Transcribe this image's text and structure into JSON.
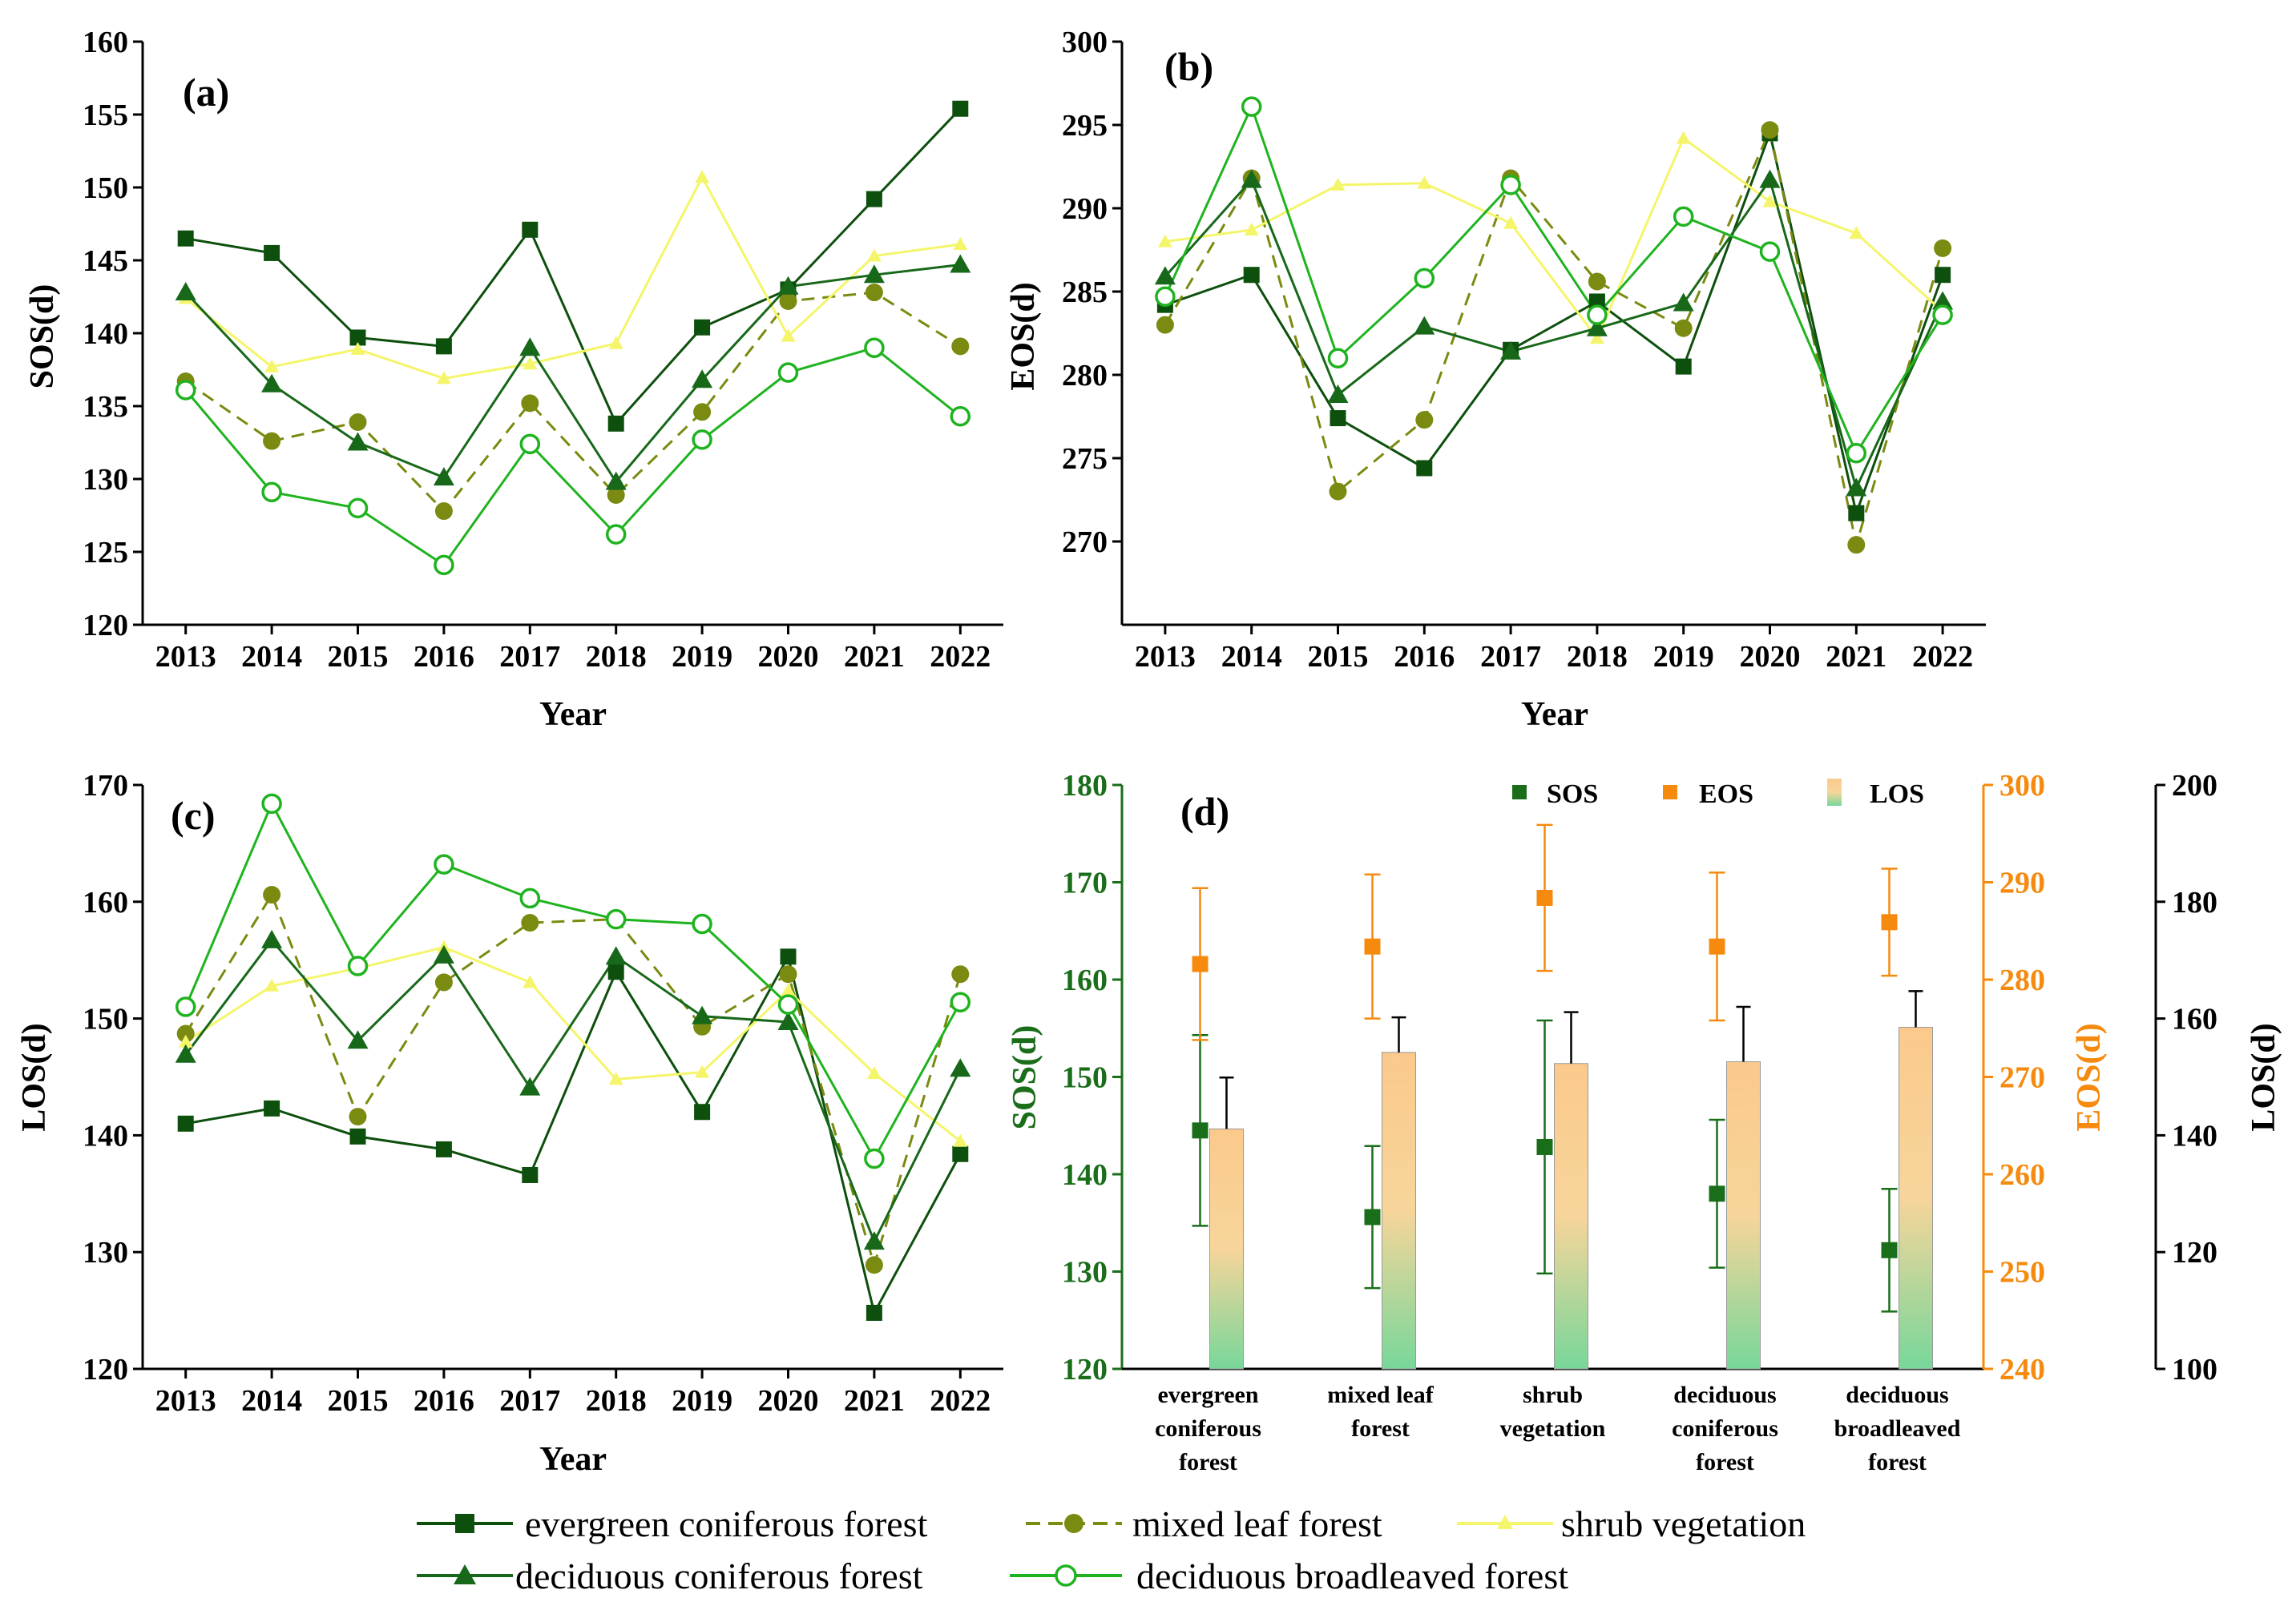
{
  "chart_data": [
    {
      "panel": "(a)",
      "type": "line",
      "ylabel": "SOS(d)",
      "xlabel": "Year",
      "ylim": [
        120,
        160
      ],
      "yticks": [
        "120",
        "125",
        "130",
        "135",
        "140",
        "145",
        "150",
        "155",
        "160"
      ],
      "categories": [
        "2013",
        "2014",
        "2015",
        "2016",
        "2017",
        "2018",
        "2019",
        "2020",
        "2021",
        "2022"
      ],
      "series": [
        {
          "name": "evergreen coniferous forest",
          "values": [
            146.5,
            145.5,
            139.7,
            139.1,
            147.1,
            133.8,
            140.4,
            143.0,
            149.2,
            155.4
          ]
        },
        {
          "name": "mixed leaf forest",
          "values": [
            136.7,
            132.6,
            133.9,
            127.8,
            135.2,
            128.9,
            134.6,
            142.2,
            142.8,
            139.1
          ]
        },
        {
          "name": "shrub vegetation",
          "values": [
            142.4,
            137.7,
            138.9,
            136.9,
            137.9,
            139.3,
            150.7,
            139.8,
            145.3,
            146.1
          ]
        },
        {
          "name": "deciduous coniferous forest",
          "values": [
            142.8,
            136.5,
            132.5,
            130.1,
            139.0,
            129.8,
            136.8,
            143.2,
            144.0,
            144.7
          ]
        },
        {
          "name": "deciduous broadleaved forest",
          "values": [
            136.1,
            129.1,
            128.0,
            124.1,
            132.4,
            126.2,
            132.7,
            137.3,
            139.0,
            134.3
          ]
        }
      ]
    },
    {
      "panel": "(b)",
      "type": "line",
      "ylabel": "EOS(d)",
      "xlabel": "Year",
      "ylim": [
        265,
        300
      ],
      "yticks": [
        "270",
        "275",
        "280",
        "285",
        "290",
        "295",
        "300"
      ],
      "categories": [
        "2013",
        "2014",
        "2015",
        "2016",
        "2017",
        "2018",
        "2019",
        "2020",
        "2021",
        "2022"
      ],
      "series": [
        {
          "name": "evergreen coniferous forest",
          "values": [
            284.2,
            286.0,
            277.4,
            274.4,
            281.5,
            284.4,
            280.5,
            294.5,
            271.7,
            286.0
          ]
        },
        {
          "name": "mixed leaf forest",
          "values": [
            283.0,
            291.8,
            273.0,
            277.3,
            291.8,
            285.6,
            282.8,
            294.7,
            269.8,
            287.6
          ]
        },
        {
          "name": "shrub vegetation",
          "values": [
            288.0,
            288.7,
            291.4,
            291.5,
            289.1,
            282.2,
            294.2,
            290.4,
            288.5,
            283.8
          ]
        },
        {
          "name": "deciduous coniferous forest",
          "values": [
            285.9,
            291.7,
            278.8,
            282.9,
            281.4,
            282.8,
            284.3,
            291.7,
            273.2,
            284.4
          ]
        },
        {
          "name": "deciduous broadleaved forest",
          "values": [
            284.7,
            296.1,
            281.0,
            285.8,
            291.4,
            283.6,
            289.5,
            287.4,
            275.3,
            283.6
          ]
        }
      ]
    },
    {
      "panel": "(c)",
      "type": "line",
      "ylabel": "LOS(d)",
      "xlabel": "Year",
      "ylim": [
        120,
        170
      ],
      "yticks": [
        "120",
        "130",
        "140",
        "150",
        "160",
        "170"
      ],
      "categories": [
        "2013",
        "2014",
        "2015",
        "2016",
        "2017",
        "2018",
        "2019",
        "2020",
        "2021",
        "2022"
      ],
      "series": [
        {
          "name": "evergreen coniferous forest",
          "values": [
            141.0,
            142.3,
            139.9,
            138.8,
            136.6,
            154.0,
            142.0,
            155.3,
            124.8,
            138.4
          ]
        },
        {
          "name": "mixed leaf forest",
          "values": [
            148.7,
            160.6,
            141.6,
            153.1,
            158.2,
            158.5,
            149.3,
            153.8,
            128.9,
            153.8
          ]
        },
        {
          "name": "shrub vegetation",
          "values": [
            148.0,
            152.8,
            154.3,
            156.1,
            153.1,
            144.8,
            145.4,
            152.4,
            145.3,
            139.5
          ]
        },
        {
          "name": "deciduous coniferous forest",
          "values": [
            146.9,
            156.7,
            148.1,
            155.4,
            144.1,
            155.3,
            150.2,
            149.7,
            130.9,
            145.7
          ]
        },
        {
          "name": "deciduous broadleaved forest",
          "values": [
            151.0,
            168.4,
            154.5,
            163.2,
            160.3,
            158.5,
            158.1,
            151.2,
            138.0,
            151.4
          ]
        }
      ]
    },
    {
      "panel": "(d)",
      "type": "bar",
      "categories": [
        "evergreen coniferous forest",
        "mixed leaf forest",
        "shrub vegetation",
        "deciduous coniferous forest",
        "deciduous broadleaved forest"
      ],
      "category_lines": [
        [
          "evergreen",
          "coniferous",
          "forest"
        ],
        [
          "mixed leaf",
          "forest"
        ],
        [
          "shrub",
          "vegetation"
        ],
        [
          "deciduous",
          "coniferous",
          "forest"
        ],
        [
          "deciduous",
          "broadleaved",
          "forest"
        ]
      ],
      "left_axis": {
        "label": "SOS(d)",
        "ylim": [
          120,
          180
        ],
        "ticks": [
          "120",
          "130",
          "140",
          "150",
          "160",
          "170",
          "180"
        ],
        "color": "#1a6e1a"
      },
      "mid_axis": {
        "label": "EOS(d)",
        "ylim": [
          240,
          300
        ],
        "ticks": [
          "240",
          "250",
          "260",
          "270",
          "280",
          "290",
          "300"
        ],
        "color": "#f58a0e"
      },
      "right_axis": {
        "label": "LOS(d)",
        "ylim": [
          100,
          200
        ],
        "ticks": [
          "100",
          "120",
          "140",
          "160",
          "180",
          "200"
        ],
        "color": "#000000"
      },
      "series": [
        {
          "name": "SOS",
          "axis": "left",
          "values": [
            144.5,
            135.6,
            142.8,
            138.0,
            132.2
          ],
          "error": [
            9.8,
            7.3,
            13.0,
            7.6,
            6.3
          ]
        },
        {
          "name": "EOS",
          "axis": "mid",
          "values": [
            281.6,
            283.4,
            288.4,
            283.4,
            285.9
          ],
          "error": [
            7.8,
            7.4,
            7.5,
            7.6,
            5.5
          ]
        },
        {
          "name": "LOS",
          "axis": "right",
          "values": [
            141.1,
            154.2,
            152.3,
            152.6,
            158.5
          ],
          "error": [
            8.8,
            6.0,
            8.8,
            9.4,
            6.2
          ]
        }
      ]
    }
  ],
  "legend": {
    "items": [
      "evergreen coniferous forest",
      "mixed leaf forest",
      "shrub vegetation",
      "deciduous coniferous forest",
      "deciduous broadleaved forest"
    ]
  },
  "colors": {
    "evergreen": "#0d4f0d",
    "mixed": "#7b8a10",
    "shrub": "#f5f56b",
    "deciduous_conifer": "#18681a",
    "deciduous_broadleaf": "#1fb31f",
    "sos": "#1a6e1a",
    "eos": "#f58a0e",
    "los_top": "#fbc98c",
    "los_bottom": "#7dd59a"
  }
}
